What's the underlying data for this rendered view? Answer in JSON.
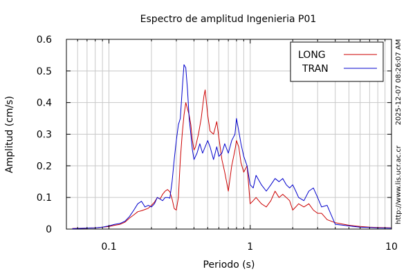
{
  "chart_data": {
    "type": "line",
    "title": "Espectro de amplitud Ingenieria P01",
    "xlabel": "Periodo (s)",
    "ylabel": "Amplitud (cm/s)",
    "x_scale": "log",
    "xlim": [
      0.05,
      10
    ],
    "ylim": [
      0,
      0.6
    ],
    "x_ticks": [
      {
        "value": 0.1,
        "label": "0.1"
      },
      {
        "value": 1,
        "label": "1"
      },
      {
        "value": 10,
        "label": "10"
      }
    ],
    "y_ticks": [
      {
        "value": 0,
        "label": "0"
      },
      {
        "value": 0.1,
        "label": "0.1"
      },
      {
        "value": 0.2,
        "label": "0.2"
      },
      {
        "value": 0.3,
        "label": "0.3"
      },
      {
        "value": 0.4,
        "label": "0.4"
      },
      {
        "value": 0.5,
        "label": "0.5"
      },
      {
        "value": 0.6,
        "label": "0.6"
      }
    ],
    "grid": true,
    "legend_position": "top-right",
    "series": [
      {
        "name": "LONG",
        "color": "#cc0000",
        "points": [
          [
            0.055,
            0.002
          ],
          [
            0.07,
            0.003
          ],
          [
            0.08,
            0.004
          ],
          [
            0.09,
            0.006
          ],
          [
            0.1,
            0.008
          ],
          [
            0.11,
            0.012
          ],
          [
            0.12,
            0.015
          ],
          [
            0.13,
            0.022
          ],
          [
            0.14,
            0.035
          ],
          [
            0.15,
            0.045
          ],
          [
            0.16,
            0.055
          ],
          [
            0.17,
            0.058
          ],
          [
            0.18,
            0.062
          ],
          [
            0.19,
            0.066
          ],
          [
            0.2,
            0.075
          ],
          [
            0.21,
            0.085
          ],
          [
            0.22,
            0.1
          ],
          [
            0.23,
            0.095
          ],
          [
            0.24,
            0.11
          ],
          [
            0.25,
            0.12
          ],
          [
            0.26,
            0.125
          ],
          [
            0.27,
            0.118
          ],
          [
            0.28,
            0.095
          ],
          [
            0.29,
            0.065
          ],
          [
            0.3,
            0.06
          ],
          [
            0.31,
            0.1
          ],
          [
            0.32,
            0.22
          ],
          [
            0.33,
            0.3
          ],
          [
            0.34,
            0.36
          ],
          [
            0.35,
            0.4
          ],
          [
            0.36,
            0.38
          ],
          [
            0.37,
            0.36
          ],
          [
            0.38,
            0.33
          ],
          [
            0.39,
            0.28
          ],
          [
            0.4,
            0.25
          ],
          [
            0.41,
            0.26
          ],
          [
            0.43,
            0.3
          ],
          [
            0.45,
            0.35
          ],
          [
            0.47,
            0.42
          ],
          [
            0.48,
            0.44
          ],
          [
            0.5,
            0.36
          ],
          [
            0.52,
            0.31
          ],
          [
            0.55,
            0.3
          ],
          [
            0.58,
            0.34
          ],
          [
            0.6,
            0.29
          ],
          [
            0.63,
            0.22
          ],
          [
            0.66,
            0.18
          ],
          [
            0.7,
            0.12
          ],
          [
            0.74,
            0.2
          ],
          [
            0.78,
            0.25
          ],
          [
            0.8,
            0.28
          ],
          [
            0.83,
            0.26
          ],
          [
            0.86,
            0.21
          ],
          [
            0.9,
            0.18
          ],
          [
            0.95,
            0.2
          ],
          [
            1.0,
            0.08
          ],
          [
            1.05,
            0.09
          ],
          [
            1.1,
            0.1
          ],
          [
            1.2,
            0.08
          ],
          [
            1.3,
            0.07
          ],
          [
            1.4,
            0.09
          ],
          [
            1.5,
            0.12
          ],
          [
            1.6,
            0.1
          ],
          [
            1.7,
            0.11
          ],
          [
            1.8,
            0.1
          ],
          [
            1.9,
            0.09
          ],
          [
            2.0,
            0.06
          ],
          [
            2.1,
            0.07
          ],
          [
            2.2,
            0.08
          ],
          [
            2.4,
            0.07
          ],
          [
            2.6,
            0.08
          ],
          [
            2.8,
            0.06
          ],
          [
            3.0,
            0.05
          ],
          [
            3.2,
            0.05
          ],
          [
            3.5,
            0.03
          ],
          [
            4.0,
            0.02
          ],
          [
            5.0,
            0.012
          ],
          [
            6.0,
            0.008
          ],
          [
            7.0,
            0.006
          ],
          [
            8.0,
            0.005
          ],
          [
            10.0,
            0.004
          ]
        ]
      },
      {
        "name": "TRAN",
        "color": "#0000cc",
        "points": [
          [
            0.055,
            0.001
          ],
          [
            0.07,
            0.003
          ],
          [
            0.08,
            0.004
          ],
          [
            0.09,
            0.006
          ],
          [
            0.1,
            0.01
          ],
          [
            0.11,
            0.015
          ],
          [
            0.12,
            0.018
          ],
          [
            0.13,
            0.025
          ],
          [
            0.14,
            0.04
          ],
          [
            0.15,
            0.06
          ],
          [
            0.16,
            0.08
          ],
          [
            0.17,
            0.088
          ],
          [
            0.18,
            0.07
          ],
          [
            0.19,
            0.075
          ],
          [
            0.2,
            0.07
          ],
          [
            0.21,
            0.08
          ],
          [
            0.22,
            0.1
          ],
          [
            0.23,
            0.095
          ],
          [
            0.24,
            0.09
          ],
          [
            0.25,
            0.1
          ],
          [
            0.26,
            0.1
          ],
          [
            0.27,
            0.098
          ],
          [
            0.28,
            0.15
          ],
          [
            0.29,
            0.22
          ],
          [
            0.3,
            0.28
          ],
          [
            0.31,
            0.33
          ],
          [
            0.32,
            0.35
          ],
          [
            0.33,
            0.44
          ],
          [
            0.34,
            0.52
          ],
          [
            0.35,
            0.51
          ],
          [
            0.36,
            0.44
          ],
          [
            0.37,
            0.35
          ],
          [
            0.38,
            0.3
          ],
          [
            0.39,
            0.25
          ],
          [
            0.4,
            0.22
          ],
          [
            0.42,
            0.24
          ],
          [
            0.44,
            0.27
          ],
          [
            0.46,
            0.24
          ],
          [
            0.48,
            0.26
          ],
          [
            0.5,
            0.28
          ],
          [
            0.52,
            0.26
          ],
          [
            0.55,
            0.22
          ],
          [
            0.58,
            0.26
          ],
          [
            0.6,
            0.23
          ],
          [
            0.63,
            0.24
          ],
          [
            0.66,
            0.27
          ],
          [
            0.7,
            0.24
          ],
          [
            0.74,
            0.28
          ],
          [
            0.78,
            0.3
          ],
          [
            0.8,
            0.35
          ],
          [
            0.83,
            0.31
          ],
          [
            0.86,
            0.27
          ],
          [
            0.9,
            0.23
          ],
          [
            0.95,
            0.2
          ],
          [
            1.0,
            0.14
          ],
          [
            1.05,
            0.13
          ],
          [
            1.1,
            0.17
          ],
          [
            1.2,
            0.14
          ],
          [
            1.3,
            0.12
          ],
          [
            1.4,
            0.14
          ],
          [
            1.5,
            0.16
          ],
          [
            1.6,
            0.15
          ],
          [
            1.7,
            0.16
          ],
          [
            1.8,
            0.14
          ],
          [
            1.9,
            0.13
          ],
          [
            2.0,
            0.14
          ],
          [
            2.1,
            0.12
          ],
          [
            2.2,
            0.1
          ],
          [
            2.4,
            0.09
          ],
          [
            2.6,
            0.12
          ],
          [
            2.8,
            0.13
          ],
          [
            3.0,
            0.1
          ],
          [
            3.2,
            0.07
          ],
          [
            3.5,
            0.075
          ],
          [
            4.0,
            0.015
          ],
          [
            5.0,
            0.01
          ],
          [
            6.0,
            0.006
          ],
          [
            7.0,
            0.005
          ],
          [
            8.0,
            0.004
          ],
          [
            10.0,
            0.003
          ]
        ]
      }
    ]
  },
  "side_texts": {
    "timestamp": "2025-12-07 08:26:07 AM",
    "website": "http://www.lis.ucr.ac.cr"
  }
}
